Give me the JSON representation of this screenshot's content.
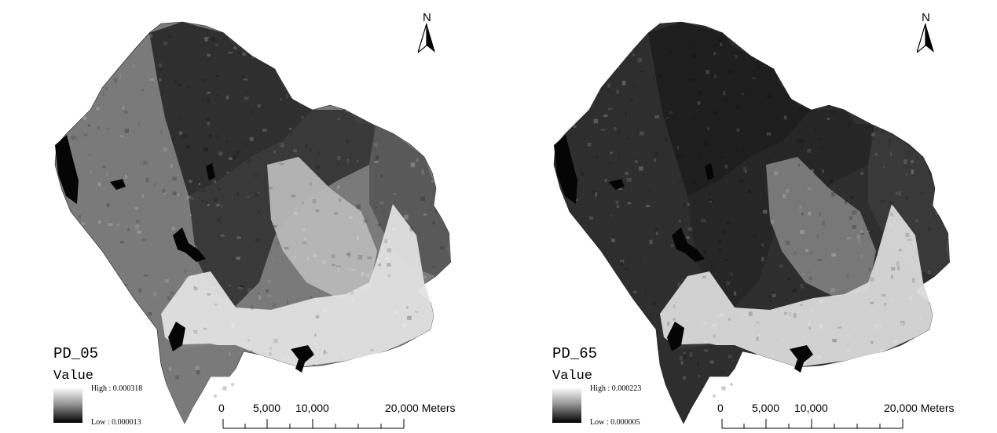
{
  "maps": [
    {
      "id": "PD_05",
      "title": "PD_05",
      "legend_label": "Value",
      "high_label": "High : 0.000318",
      "low_label": "Low : 0.000013",
      "north_label": "N",
      "scale_labels": [
        "0",
        "5,000",
        "10,000",
        "20,000 Meters"
      ],
      "colors": {
        "west": "#7a7a7a",
        "north": "#2b2b2b",
        "center": "#363636",
        "east": "#575757",
        "bright": "#b8b8b8",
        "urban": "#e2e2e2"
      }
    },
    {
      "id": "PD_65",
      "title": "PD_65",
      "legend_label": "Value",
      "high_label": "High : 0.000223",
      "low_label": "Low : 0.000005",
      "north_label": "N",
      "scale_labels": [
        "0",
        "5,000",
        "10,000",
        "20,000 Meters"
      ],
      "colors": {
        "west": "#2e2e2e",
        "north": "#1e1e1e",
        "center": "#262626",
        "east": "#3a3a3a",
        "bright": "#7c7c7c",
        "urban": "#dadada"
      }
    }
  ]
}
